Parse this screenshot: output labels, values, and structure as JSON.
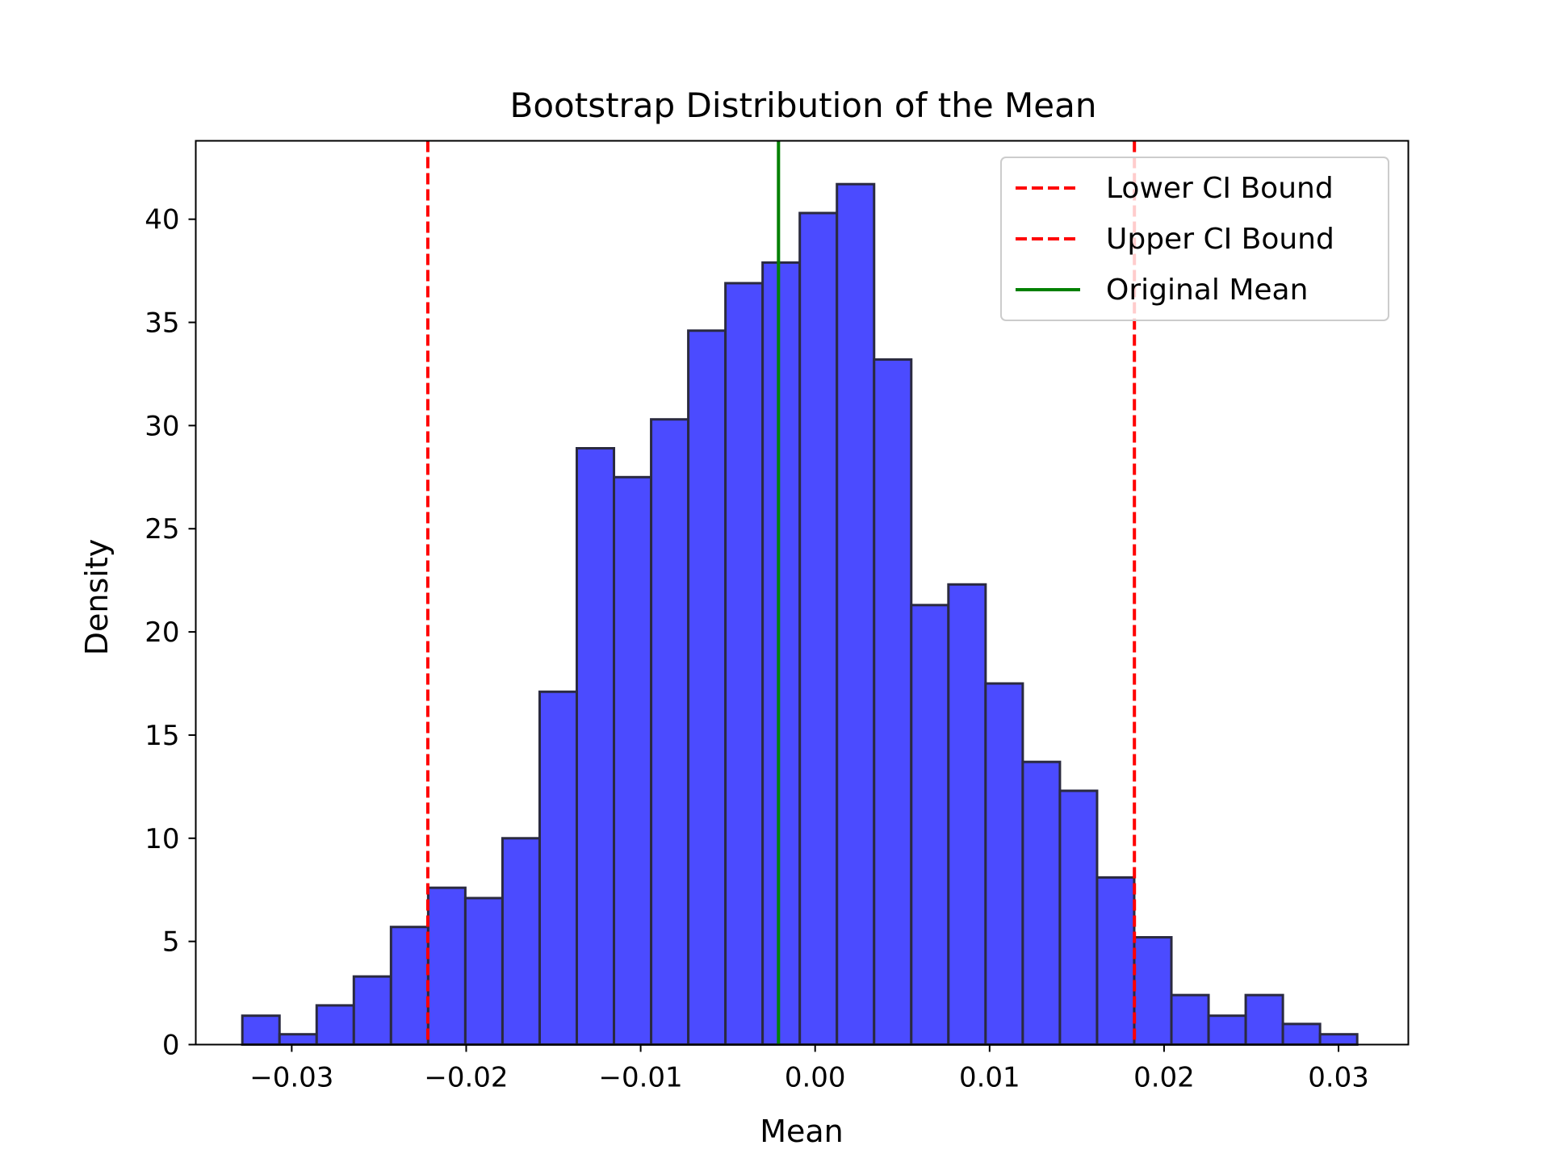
{
  "chart_data": {
    "type": "bar",
    "title": "Bootstrap Distribution of the Mean",
    "xlabel": "Mean",
    "ylabel": "Density",
    "xlim": [
      -0.0355,
      0.034
    ],
    "ylim": [
      0,
      43.8
    ],
    "xticks": [
      -0.03,
      -0.02,
      -0.01,
      0.0,
      0.01,
      0.02,
      0.03
    ],
    "xtick_labels": [
      "−0.03",
      "−0.02",
      "−0.01",
      "0.00",
      "0.01",
      "0.02",
      "0.03"
    ],
    "yticks": [
      0,
      5,
      10,
      15,
      20,
      25,
      30,
      35,
      40
    ],
    "ytick_labels": [
      "0",
      "5",
      "10",
      "15",
      "20",
      "25",
      "30",
      "35",
      "40"
    ],
    "bin_edges": [
      -0.03283,
      -0.0307,
      -0.02857,
      -0.02644,
      -0.02431,
      -0.02218,
      -0.02005,
      -0.01792,
      -0.01579,
      -0.01366,
      -0.01153,
      -0.0094,
      -0.00727,
      -0.00514,
      -0.00301,
      -0.00088,
      0.00125,
      0.00338,
      0.00551,
      0.00764,
      0.00977,
      0.0119,
      0.01403,
      0.01616,
      0.01829,
      0.02042,
      0.02255,
      0.02468,
      0.02681,
      0.02894,
      0.03107
    ],
    "values": [
      1.4,
      0.5,
      1.9,
      3.3,
      5.7,
      7.6,
      7.1,
      10.0,
      17.1,
      28.9,
      27.5,
      30.3,
      34.6,
      36.9,
      37.9,
      40.3,
      41.7,
      33.2,
      21.3,
      22.3,
      17.5,
      13.7,
      12.3,
      8.1,
      5.2,
      2.4,
      1.4,
      2.4,
      1.0,
      0.5
    ],
    "bar_color": "#4b4bff",
    "bar_edge_color": "#2a2a40",
    "grid": false,
    "legend_position": "top-right",
    "lines": [
      {
        "name": "Lower CI Bound",
        "x": -0.0222,
        "color": "#ff0000",
        "style": "dashed"
      },
      {
        "name": "Upper CI Bound",
        "x": 0.0183,
        "color": "#ff0000",
        "style": "dashed"
      },
      {
        "name": "Original Mean",
        "x": -0.0021,
        "color": "#008000",
        "style": "solid"
      }
    ]
  }
}
